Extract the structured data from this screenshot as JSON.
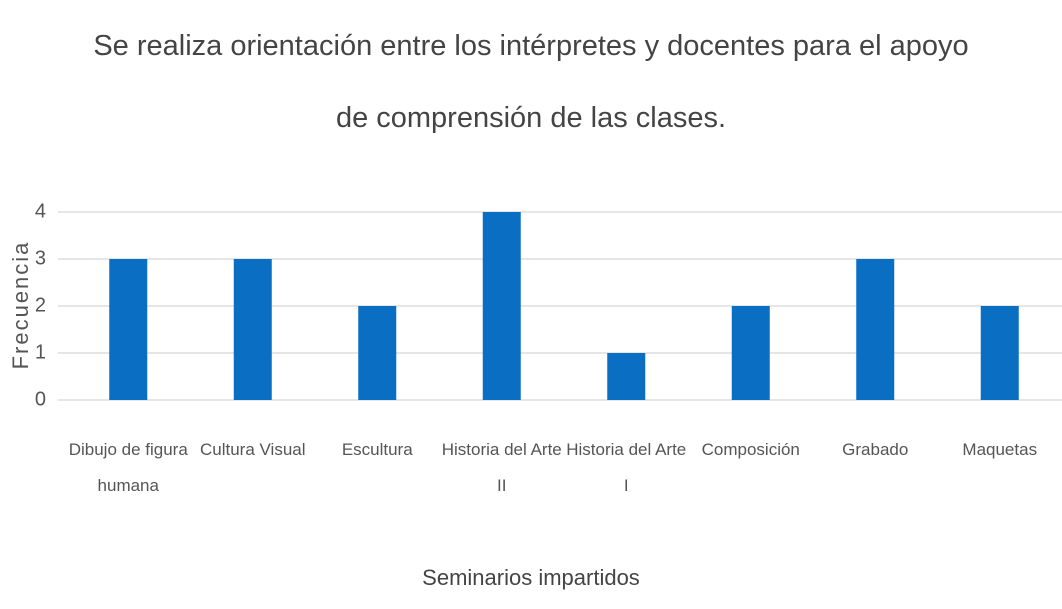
{
  "chart_data": {
    "type": "bar",
    "title": "Se realiza orientación entre los intérpretes y docentes para el apoyo de comprensión de las clases.",
    "x_label": "Seminarios impartidos",
    "y_label": "Frecuencia",
    "categories": [
      "Dibujo de figura humana",
      "Cultura Visual",
      "Escultura",
      "Historia del Arte II",
      "Historia del Arte I",
      "Composición",
      "Grabado",
      "Maquetas"
    ],
    "values": [
      3,
      3,
      2,
      4,
      1,
      2,
      3,
      2
    ],
    "color": "#0a6fc2",
    "ylim": [
      0,
      4
    ],
    "yticks": [
      0,
      1,
      2,
      3,
      4
    ],
    "grid": true
  }
}
